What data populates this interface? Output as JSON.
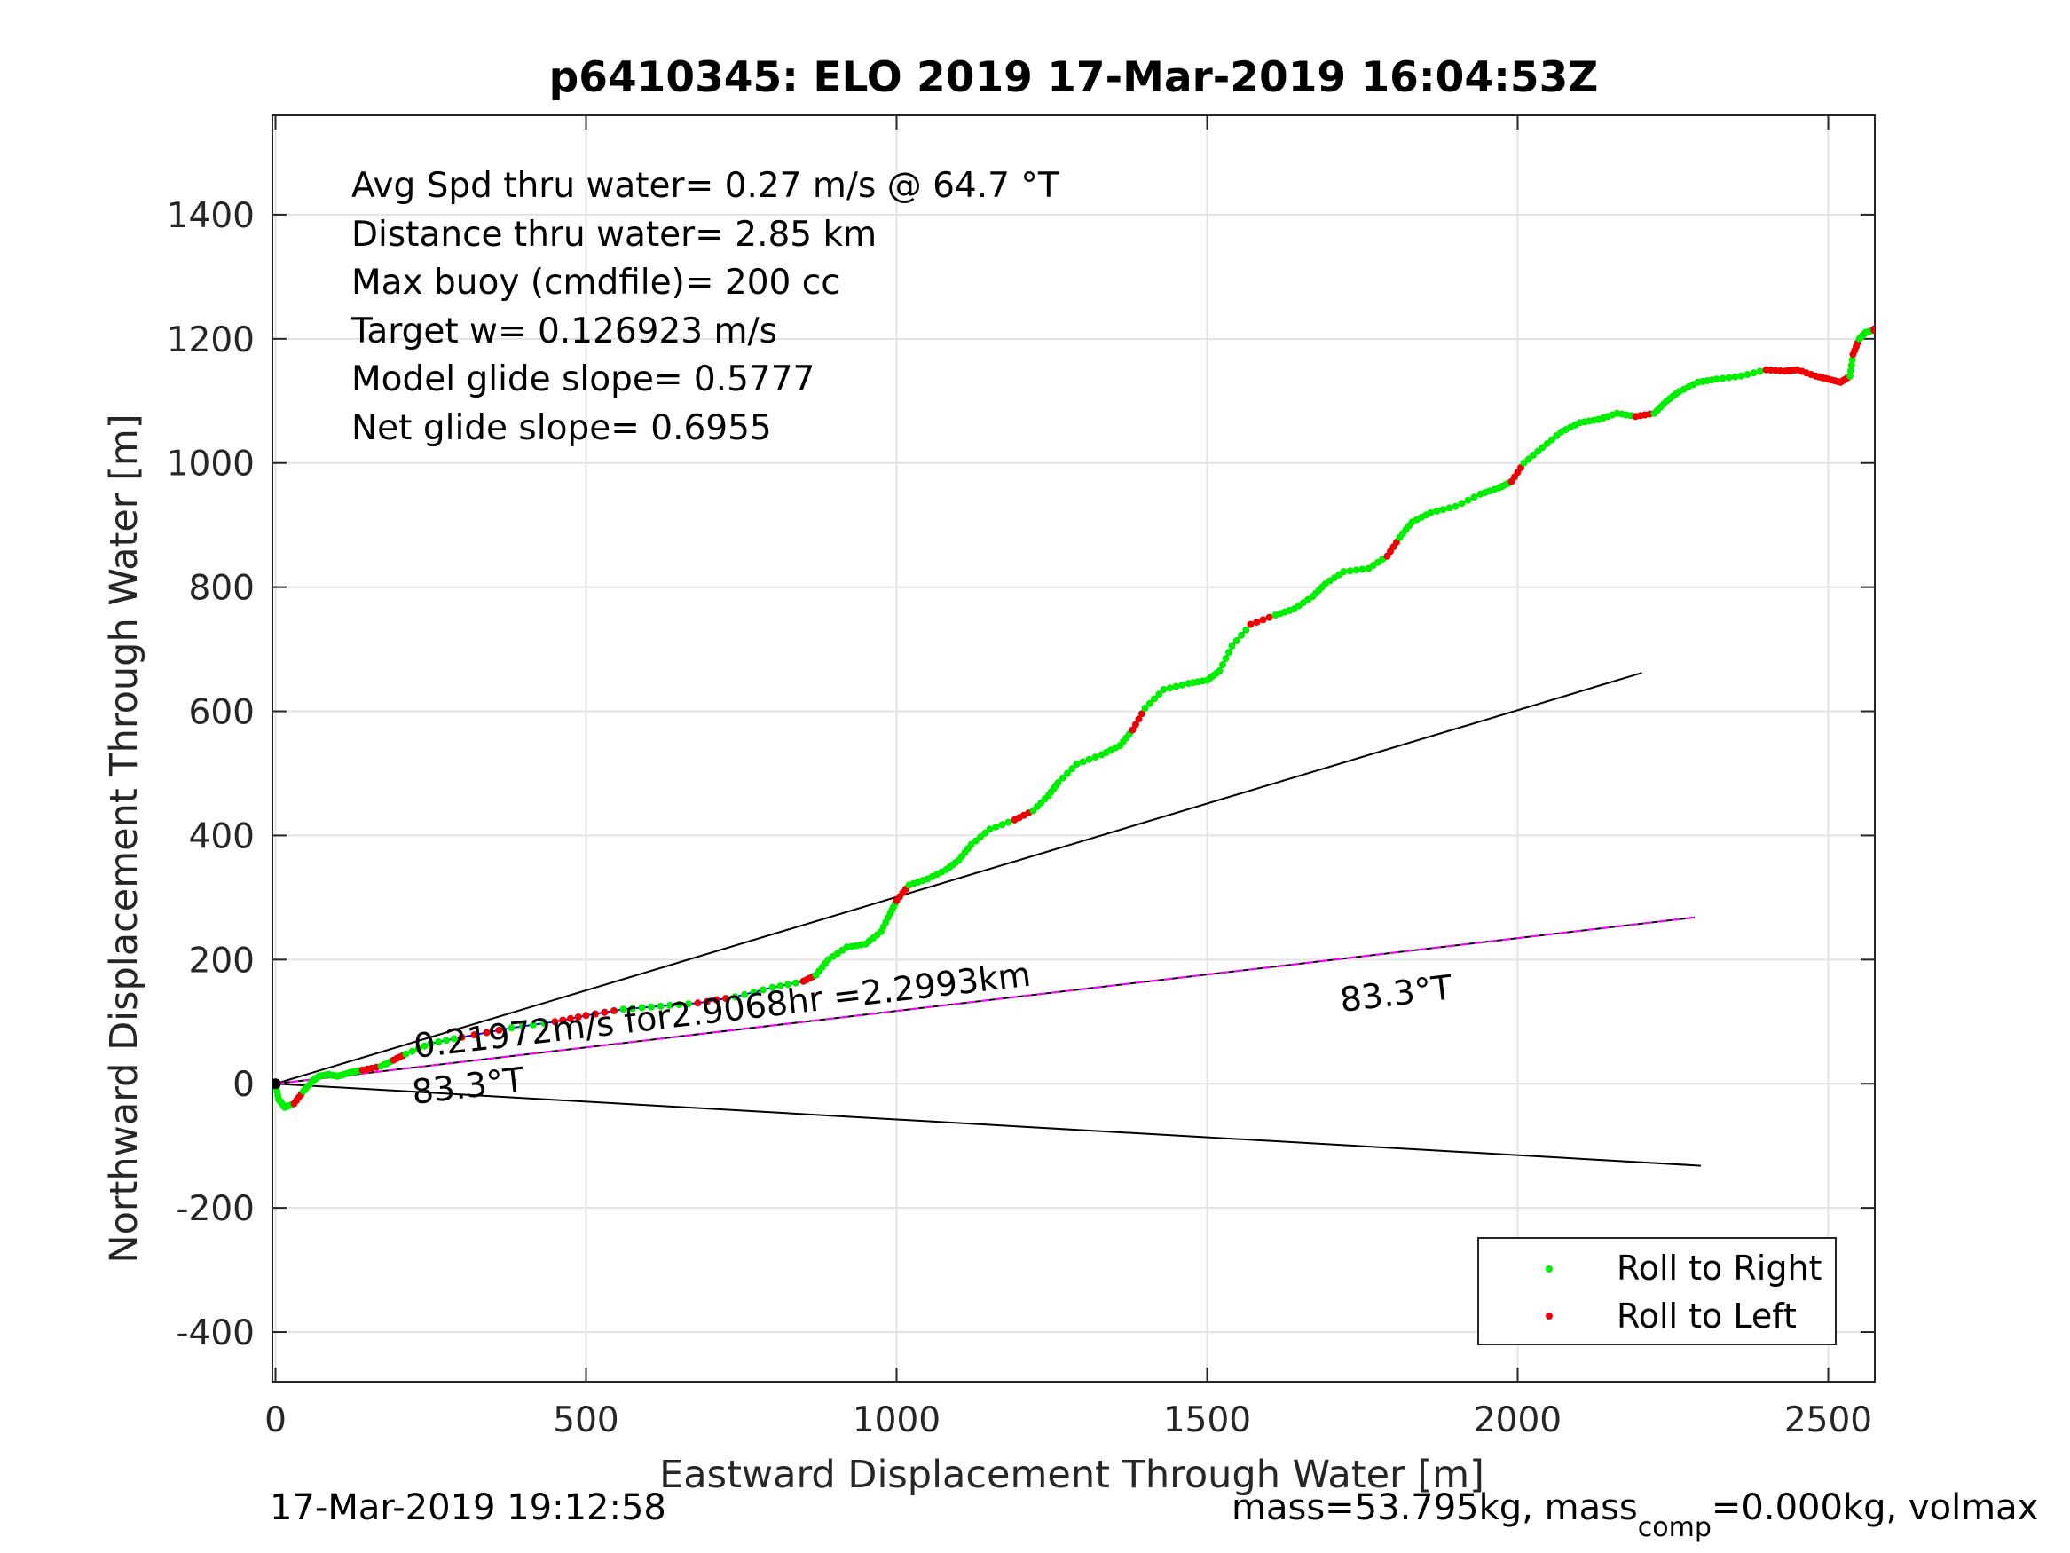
{
  "chart_data": {
    "type": "line",
    "title": "p6410345: ELO 2019 17-Mar-2019 16:04:53Z",
    "xlabel": "Eastward Displacement Through Water [m]",
    "ylabel": "Northward Displacement Through Water [m]",
    "xlim": [
      -5,
      2575
    ],
    "ylim": [
      -480,
      1560
    ],
    "xticks": [
      0,
      500,
      1000,
      1500,
      2000,
      2500
    ],
    "yticks": [
      -400,
      -200,
      0,
      200,
      400,
      600,
      800,
      1000,
      1200,
      1400
    ],
    "grid": true,
    "legend_position": "bottom-right",
    "annotations": [
      "Avg Spd thru water=  0.27 m/s @  64.7 °T",
      "Distance thru water=  2.85 km",
      "Max buoy (cmdfile)= 200 cc",
      "Target w= 0.126923 m/s",
      "Model glide slope= 0.5777",
      "Net glide slope= 0.6955"
    ],
    "current_label": "0.21972m/s for2.9068hr =2.2993km",
    "heading_labels": [
      "83.3°T",
      "83.3°T"
    ],
    "footer_left": "17-Mar-2019 19:12:58",
    "footer_right": {
      "pre": "mass=53.795kg, mass",
      "sub": "comp",
      "post": "=0.000kg, volmax"
    },
    "legend": [
      {
        "label": "Roll to Right",
        "color": "#00ee00"
      },
      {
        "label": "Roll to Left",
        "color": "#ee0000"
      }
    ],
    "track": {
      "name": "glider track",
      "color": "#0000ff",
      "x": [
        0,
        5,
        15,
        30,
        45,
        60,
        70,
        85,
        100,
        120,
        140,
        170,
        190,
        210,
        250,
        300,
        380,
        450,
        500,
        560,
        620,
        680,
        740,
        800,
        850,
        870,
        890,
        920,
        950,
        975,
        990,
        1000,
        1020,
        1050,
        1080,
        1100,
        1120,
        1150,
        1190,
        1220,
        1245,
        1260,
        1290,
        1330,
        1360,
        1380,
        1400,
        1430,
        1470,
        1500,
        1520,
        1540,
        1570,
        1610,
        1640,
        1670,
        1690,
        1720,
        1760,
        1790,
        1810,
        1830,
        1860,
        1900,
        1940,
        1970,
        1990,
        2010,
        2040,
        2070,
        2100,
        2130,
        2160,
        2190,
        2220,
        2240,
        2260,
        2290,
        2320,
        2360,
        2400,
        2430,
        2450,
        2480,
        2500,
        2520,
        2535,
        2540,
        2550,
        2560,
        2575
      ],
      "y": [
        0,
        -25,
        -38,
        -32,
        -12,
        5,
        12,
        15,
        12,
        18,
        22,
        28,
        38,
        48,
        65,
        75,
        90,
        100,
        110,
        120,
        125,
        130,
        140,
        155,
        165,
        175,
        200,
        220,
        225,
        245,
        275,
        295,
        320,
        330,
        345,
        360,
        385,
        410,
        425,
        440,
        465,
        485,
        515,
        530,
        545,
        570,
        605,
        635,
        645,
        650,
        665,
        705,
        740,
        755,
        765,
        785,
        805,
        825,
        830,
        850,
        880,
        905,
        920,
        930,
        950,
        960,
        970,
        1000,
        1025,
        1050,
        1065,
        1070,
        1080,
        1075,
        1080,
        1100,
        1115,
        1130,
        1135,
        1140,
        1150,
        1148,
        1150,
        1140,
        1135,
        1130,
        1140,
        1175,
        1200,
        1210,
        1215
      ]
    },
    "current_line": {
      "name": "current",
      "color": "#ff00ff",
      "x": [
        0,
        2285
      ],
      "y": [
        0,
        268
      ]
    },
    "envelope_upper": {
      "color": "#000000",
      "x": [
        0,
        2200
      ],
      "y": [
        0,
        662
      ]
    },
    "envelope_lower": {
      "color": "#000000",
      "x": [
        0,
        2295
      ],
      "y": [
        0,
        -132
      ]
    }
  }
}
